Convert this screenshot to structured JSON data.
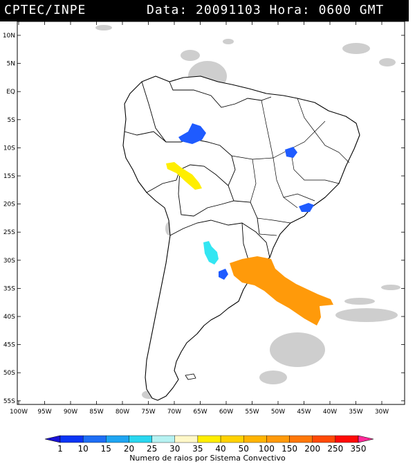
{
  "header": {
    "source": "CPTEC/INPE",
    "date_text": "Data: 20091103 Hora: 0600 GMT"
  },
  "map": {
    "lat_labels": [
      "10N",
      "5N",
      "EQ",
      "5S",
      "10S",
      "15S",
      "20S",
      "25S",
      "30S",
      "35S",
      "40S",
      "45S",
      "50S",
      "55S"
    ],
    "lon_labels": [
      "100W",
      "95W",
      "90W",
      "85W",
      "80W",
      "75W",
      "70W",
      "65W",
      "60W",
      "55W",
      "50W",
      "45W",
      "40W",
      "35W",
      "30W"
    ],
    "colors": {
      "land": "#ffffff",
      "coast": "#000000",
      "cloud": "#c8c8c8"
    }
  },
  "systems": [
    {
      "name": "amazon-system",
      "color": "#1f5bff",
      "class": "10-15"
    },
    {
      "name": "bolivia-system",
      "color": "#ffee00",
      "class": "35-40"
    },
    {
      "name": "goias-system",
      "color": "#1f5bff",
      "class": "10-15"
    },
    {
      "name": "southeast-system",
      "color": "#1f5bff",
      "class": "10-15"
    },
    {
      "name": "argentina-north-system",
      "color": "#33e6f2",
      "class": "20-25"
    },
    {
      "name": "argentina-small-system",
      "color": "#1f5bff",
      "class": "10-15"
    },
    {
      "name": "uruguay-atlantic-system",
      "color": "#ff9a0a",
      "class": "100-150"
    }
  ],
  "colorbar": {
    "labels": [
      "1",
      "10",
      "15",
      "20",
      "25",
      "30",
      "35",
      "40",
      "50",
      "100",
      "150",
      "200",
      "250",
      "350"
    ],
    "colors": [
      "#1a12d8",
      "#0a35f5",
      "#1e6ef5",
      "#1fa5f2",
      "#2ad7f0",
      "#b6f2f2",
      "#fff8c8",
      "#ffee00",
      "#ffd200",
      "#ffb400",
      "#ff9a0a",
      "#ff7808",
      "#ff4a06",
      "#ff0a06",
      "#ff2a9a"
    ],
    "title": "Numero de raios por Sistema Convectivo"
  }
}
